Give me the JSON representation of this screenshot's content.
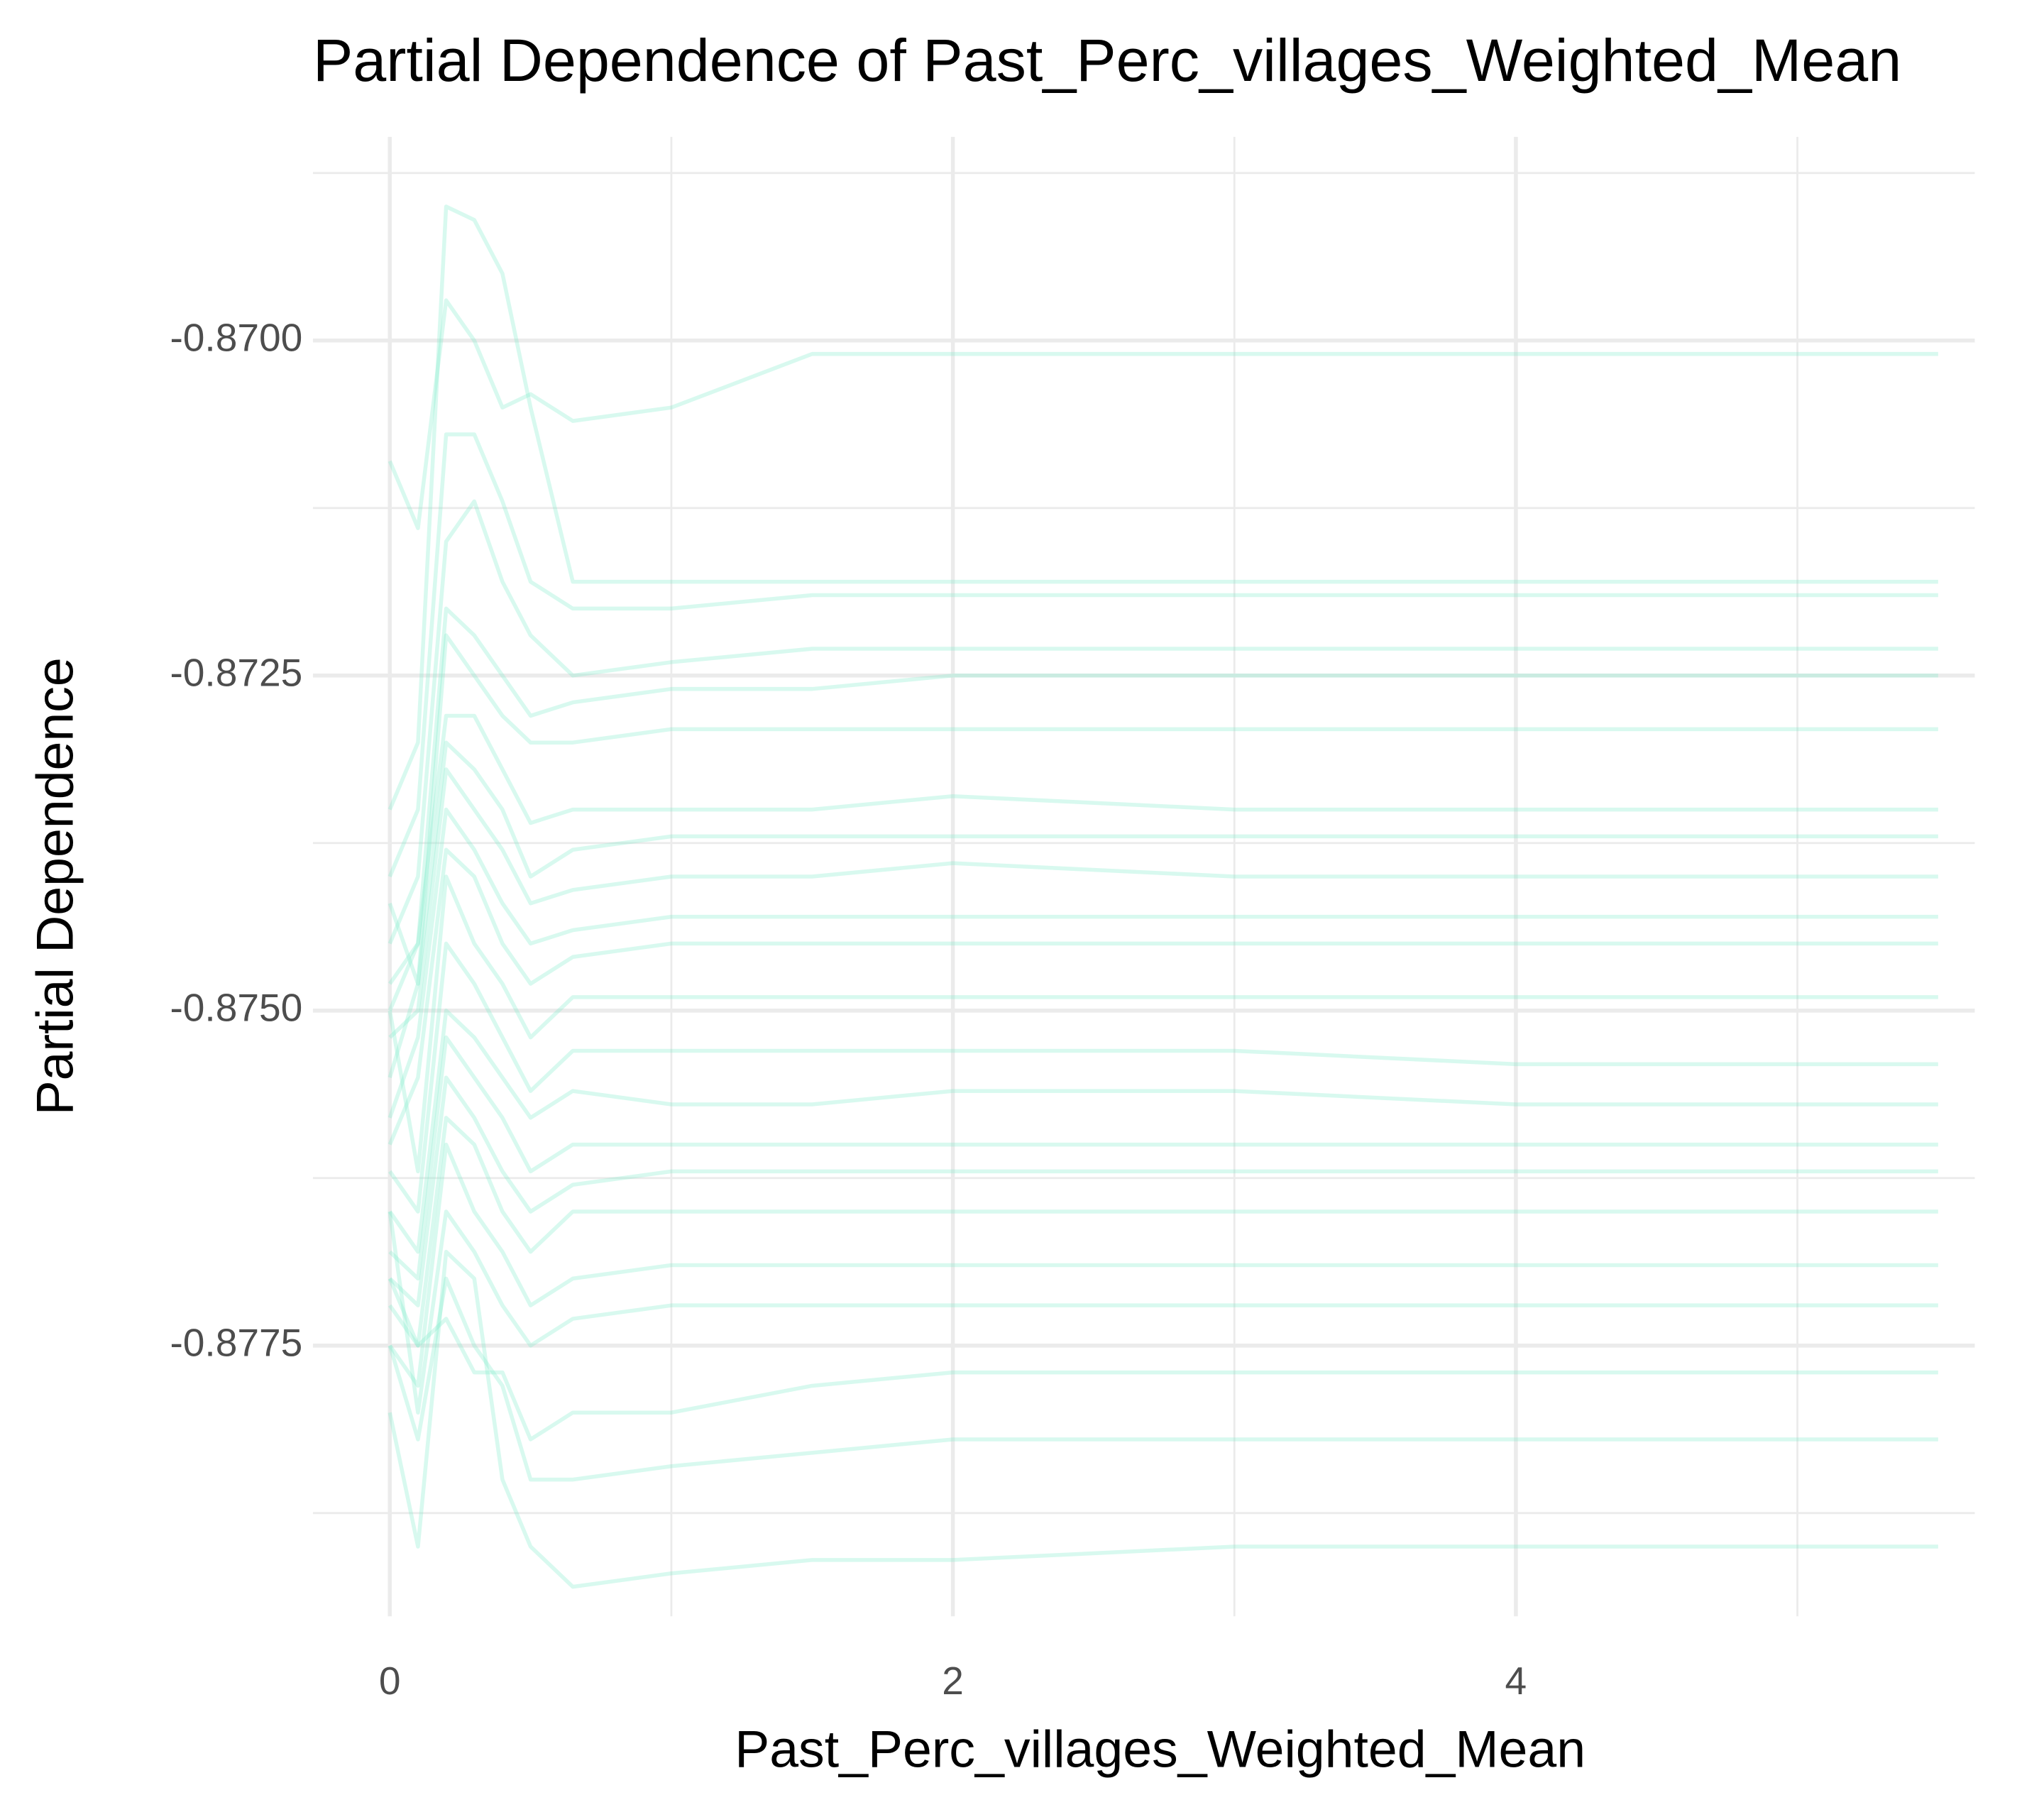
{
  "chart_data": {
    "type": "line",
    "title": "Partial Dependence of Past_Perc_villages_Weighted_Mean",
    "x_label": "Past_Perc_villages_Weighted_Mean",
    "y_label": "Partial Dependence",
    "color": "#7FEBC9",
    "alpha": 0.3,
    "grid": true,
    "xlim": [
      -0.273,
      5.63
    ],
    "ylim": [
      -0.87952,
      -0.86848
    ],
    "xticks": [
      0,
      2,
      4
    ],
    "xminor": [
      1,
      3,
      5
    ],
    "yticks": [
      {
        "value": -0.87,
        "label": "-0.8700"
      },
      {
        "value": -0.8725,
        "label": "-0.8725"
      },
      {
        "value": -0.875,
        "label": "-0.8750"
      },
      {
        "value": -0.8775,
        "label": "-0.8775"
      }
    ],
    "yminor": [
      -0.86875,
      -0.87125,
      -0.87375,
      -0.87625,
      -0.87875
    ],
    "x": [
      0,
      0.1,
      0.2,
      0.3,
      0.4,
      0.5,
      0.65,
      1,
      1.5,
      2,
      3,
      4,
      5.5
    ],
    "series": [
      {
        "values": [
          -0.8709,
          -0.8714,
          -0.8697,
          -0.87,
          -0.8705,
          -0.8704,
          -0.8706,
          -0.8705,
          -0.8701,
          -0.8701,
          -0.8701,
          -0.8701,
          -0.8701
        ]
      },
      {
        "values": [
          -0.8735,
          -0.873,
          -0.869,
          -0.8691,
          -0.8695,
          -0.8705,
          -0.8718,
          -0.8718,
          -0.8718,
          -0.8718,
          -0.8718,
          -0.8718,
          -0.8718
        ]
      },
      {
        "values": [
          -0.874,
          -0.8735,
          -0.8707,
          -0.8707,
          -0.8712,
          -0.8718,
          -0.872,
          -0.872,
          -0.8719,
          -0.8719,
          -0.8719,
          -0.8719,
          -0.8719
        ]
      },
      {
        "values": [
          -0.8745,
          -0.874,
          -0.8715,
          -0.8712,
          -0.8718,
          -0.8722,
          -0.8725,
          -0.8724,
          -0.8723,
          -0.8723,
          -0.8723,
          -0.8723,
          -0.8723
        ]
      },
      {
        "values": [
          -0.875,
          -0.8745,
          -0.872,
          -0.8722,
          -0.8725,
          -0.8728,
          -0.8727,
          -0.8726,
          -0.8726,
          -0.8725,
          -0.8725,
          -0.8725,
          -0.8725
        ]
      },
      {
        "values": [
          -0.8755,
          -0.8748,
          -0.8722,
          -0.8725,
          -0.8728,
          -0.873,
          -0.873,
          -0.8729,
          -0.8729,
          -0.8729,
          -0.8729,
          -0.8729,
          -0.8729
        ]
      },
      {
        "values": [
          -0.8748,
          -0.8745,
          -0.8728,
          -0.8728,
          -0.8732,
          -0.8736,
          -0.8735,
          -0.8735,
          -0.8735,
          -0.8734,
          -0.8735,
          -0.8735,
          -0.8735
        ]
      },
      {
        "values": [
          -0.8742,
          -0.8748,
          -0.873,
          -0.8732,
          -0.8735,
          -0.874,
          -0.8738,
          -0.8737,
          -0.8737,
          -0.8737,
          -0.8737,
          -0.8737,
          -0.8737
        ]
      },
      {
        "values": [
          -0.8752,
          -0.875,
          -0.8732,
          -0.8735,
          -0.8738,
          -0.8742,
          -0.8741,
          -0.874,
          -0.874,
          -0.8739,
          -0.874,
          -0.874,
          -0.874
        ]
      },
      {
        "values": [
          -0.8758,
          -0.8752,
          -0.8735,
          -0.8738,
          -0.8742,
          -0.8745,
          -0.8744,
          -0.8743,
          -0.8743,
          -0.8743,
          -0.8743,
          -0.8743,
          -0.8743
        ]
      },
      {
        "values": [
          -0.876,
          -0.8755,
          -0.8738,
          -0.874,
          -0.8745,
          -0.8748,
          -0.8746,
          -0.8745,
          -0.8745,
          -0.8745,
          -0.8745,
          -0.8745,
          -0.8745
        ]
      },
      {
        "values": [
          -0.875,
          -0.8762,
          -0.874,
          -0.8745,
          -0.8748,
          -0.8752,
          -0.8749,
          -0.8749,
          -0.8749,
          -0.8749,
          -0.8749,
          -0.8749,
          -0.8749
        ]
      },
      {
        "values": [
          -0.8762,
          -0.8765,
          -0.8745,
          -0.8748,
          -0.8752,
          -0.8756,
          -0.8753,
          -0.8753,
          -0.8753,
          -0.8753,
          -0.8753,
          -0.8754,
          -0.8754
        ]
      },
      {
        "values": [
          -0.8765,
          -0.8768,
          -0.875,
          -0.8752,
          -0.8755,
          -0.8758,
          -0.8756,
          -0.8757,
          -0.8757,
          -0.8756,
          -0.8756,
          -0.8757,
          -0.8757
        ]
      },
      {
        "values": [
          -0.8768,
          -0.877,
          -0.8752,
          -0.8755,
          -0.8758,
          -0.8762,
          -0.876,
          -0.876,
          -0.876,
          -0.876,
          -0.876,
          -0.876,
          -0.876
        ]
      },
      {
        "values": [
          -0.877,
          -0.8772,
          -0.8755,
          -0.8758,
          -0.8762,
          -0.8765,
          -0.8763,
          -0.8762,
          -0.8762,
          -0.8762,
          -0.8762,
          -0.8762,
          -0.8762
        ]
      },
      {
        "values": [
          -0.8772,
          -0.8775,
          -0.8758,
          -0.876,
          -0.8765,
          -0.8768,
          -0.8765,
          -0.8765,
          -0.8765,
          -0.8765,
          -0.8765,
          -0.8765,
          -0.8765
        ]
      },
      {
        "values": [
          -0.8775,
          -0.8778,
          -0.876,
          -0.8765,
          -0.8768,
          -0.8772,
          -0.877,
          -0.8769,
          -0.8769,
          -0.8769,
          -0.8769,
          -0.8769,
          -0.8769
        ]
      },
      {
        "values": [
          -0.8765,
          -0.878,
          -0.8765,
          -0.8768,
          -0.8772,
          -0.8775,
          -0.8773,
          -0.8772,
          -0.8772,
          -0.8772,
          -0.8772,
          -0.8772,
          -0.8772
        ]
      },
      {
        "values": [
          -0.877,
          -0.8775,
          -0.8773,
          -0.8777,
          -0.8777,
          -0.8782,
          -0.878,
          -0.878,
          -0.8778,
          -0.8777,
          -0.8777,
          -0.8777,
          -0.8777
        ]
      },
      {
        "values": [
          -0.8775,
          -0.8782,
          -0.877,
          -0.8775,
          -0.8778,
          -0.8785,
          -0.8785,
          -0.8784,
          -0.8783,
          -0.8782,
          -0.8782,
          -0.8782,
          -0.8782
        ]
      },
      {
        "values": [
          -0.878,
          -0.879,
          -0.8768,
          -0.877,
          -0.8785,
          -0.879,
          -0.8793,
          -0.8792,
          -0.8791,
          -0.8791,
          -0.879,
          -0.879,
          -0.879
        ]
      }
    ]
  }
}
